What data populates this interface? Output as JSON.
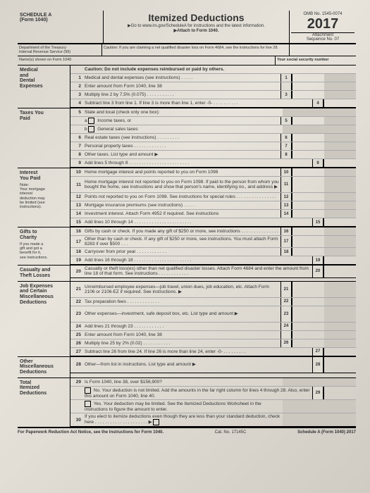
{
  "header": {
    "schedule": "SCHEDULE A",
    "form": "(Form 1040)",
    "title": "Itemized Deductions",
    "goto": "▶Go to www.irs.gov/ScheduleA for instructions and the latest information.",
    "attach": "▶Attach to Form 1040.",
    "omb": "OMB No. 1545-0074",
    "year": "2017",
    "attachment": "Attachment",
    "seq": "Sequence No. 07"
  },
  "row2": {
    "dept": "Department of the Treasury",
    "irs": "Internal Revenue Service (99)",
    "caution": "Caution: If you are claiming a net qualified disaster loss on Form 4684, see the instructions for line 28."
  },
  "names": {
    "label": "Name(s) shown on Form 1040",
    "ssn": "Your social security number"
  },
  "sections": {
    "medical": {
      "label": "Medical\nand\nDental\nExpenses",
      "caution": "Caution: Do not include expenses reimbursed or paid by others.",
      "lines": [
        {
          "n": "1",
          "t": "Medical and dental expenses (see instructions) . . . . .",
          "box": "1"
        },
        {
          "n": "2",
          "t": "Enter amount from Form 1040, line 38",
          "box": ""
        },
        {
          "n": "3",
          "t": "Multiply line 2 by 7.5% (0.075) . . . . . . . . . . .",
          "box": "3"
        },
        {
          "n": "4",
          "t": "Subtract line 3 from line 1. If line 3 is more than line 1, enter -0- . . . . . . . . . .",
          "box": "4",
          "full": true
        }
      ]
    },
    "taxes": {
      "label": "Taxes You\nPaid",
      "lines": [
        {
          "n": "5",
          "t": "State and local (check only one box):"
        },
        {
          "n": "",
          "t": "a ☐ Income taxes, or",
          "box": "5"
        },
        {
          "n": "",
          "t": "b ☐ General sales taxes"
        },
        {
          "n": "6",
          "t": "Real estate taxes (see instructions) . . . . . . . . .",
          "box": "6"
        },
        {
          "n": "7",
          "t": "Personal property taxes . . . . . . . . . . . . .",
          "box": "7"
        },
        {
          "n": "8",
          "t": "Other taxes. List type and amount ▶",
          "box": "8"
        },
        {
          "n": "9",
          "t": "Add lines 5 through 8 . . . . . . . . . . . . . . . . . . . . . . . .",
          "box": "9",
          "full": true
        }
      ]
    },
    "interest": {
      "label": "Interest\nYou Paid",
      "note": "Note:\nYour mortgage\ninterest\ndeduction may\nbe limited (see\ninstructions).",
      "lines": [
        {
          "n": "10",
          "t": "Home mortgage interest and points reported to you on Form 1098",
          "box": "10"
        },
        {
          "n": "11",
          "t": "Home mortgage interest not reported to you on Form 1098. If paid to the person from whom you bought the home, see instructions and show that person's name, identifying no., and address ▶",
          "box": "11",
          "tall": true
        },
        {
          "n": "12",
          "t": "Points not reported to you on Form 1098. See instructions for special rules . . . . . . . . . . . . . . . .",
          "box": "12"
        },
        {
          "n": "13",
          "t": "Mortgage insurance premiums (see instructions) . . . . .",
          "box": "13"
        },
        {
          "n": "14",
          "t": "Investment interest. Attach Form 4952 if required. See instructions",
          "box": "14"
        },
        {
          "n": "15",
          "t": "Add lines 10 through 14 . . . . . . . . . . . . . . . . . . . . . . .",
          "box": "15",
          "full": true
        }
      ]
    },
    "gifts": {
      "label": "Gifts to\nCharity",
      "note": "If you made a\ngift and got a\nbenefit for it,\nsee instructions.",
      "lines": [
        {
          "n": "16",
          "t": "Gifts by cash or check. If you made any gift of $250 or more, see instructions . . . . . . . . . . . . . . .",
          "box": "16"
        },
        {
          "n": "17",
          "t": "Other than by cash or check. If any gift of $250 or more, see instructions. You must attach Form 8283 if over $500 . . .",
          "box": "17"
        },
        {
          "n": "18",
          "t": "Carryover from prior year . . . . . . . . . . . .",
          "box": "18"
        },
        {
          "n": "19",
          "t": "Add lines 16 through 18 . . . . . . . . . . . . . . . . . . . . . . .",
          "box": "19",
          "full": true
        }
      ]
    },
    "casualty": {
      "label": "Casualty and\nTheft Losses",
      "lines": [
        {
          "n": "20",
          "t": "Casualty or theft loss(es) other than net qualified disaster losses. Attach Form 4684 and enter the amount from line 18 of that form. See instructions . . . . . . . . . . . .",
          "box": "20",
          "full": true
        }
      ]
    },
    "job": {
      "label": "Job Expenses\nand Certain\nMiscellaneous\nDeductions",
      "lines": [
        {
          "n": "21",
          "t": "Unreimbursed employee expenses—job travel, union dues, job education, etc. Attach Form 2106 or 2106-EZ if required. See instructions. ▶",
          "box": "21",
          "tall": true
        },
        {
          "n": "22",
          "t": "Tax preparation fees . . . . . . . . . . . . .",
          "box": "22"
        },
        {
          "n": "23",
          "t": "Other expenses—investment, safe deposit box, etc. List type and amount ▶",
          "box": "23",
          "tall": true
        },
        {
          "n": "24",
          "t": "Add lines 21 through 23 . . . . . . . . . . . .",
          "box": "24"
        },
        {
          "n": "25",
          "t": "Enter amount from Form 1040, line 38",
          "box": ""
        },
        {
          "n": "26",
          "t": "Multiply line 25 by 2% (0.02) . . . . . . . . . . .",
          "box": "26"
        },
        {
          "n": "27",
          "t": "Subtract line 26 from line 24. If line 26 is more than line 24, enter -0- . . . . . . . . .",
          "box": "27",
          "full": true
        }
      ]
    },
    "othermisc": {
      "label": "Other\nMiscellaneous\nDeductions",
      "lines": [
        {
          "n": "28",
          "t": "Other—from list in instructions. List type and amount ▶",
          "box": "28",
          "full": true,
          "tall": true
        }
      ]
    },
    "total": {
      "label": "Total\nItemized\nDeductions",
      "lines": [
        {
          "n": "29",
          "t": "Is Form 1040, line 38, over $156,900?"
        },
        {
          "n": "",
          "t": "☐ No. Your deduction is not limited. Add the amounts in the far right column for lines 4 through 28. Also, enter this amount on Form 1040, line 40.",
          "box": "29",
          "full": true
        },
        {
          "n": "",
          "t": "☐ Yes. Your deduction may be limited. See the Itemized Deductions Worksheet in the instructions to figure the amount to enter."
        },
        {
          "n": "30",
          "t": "If you elect to itemize deductions even though they are less than your standard deduction, check here . . . . . . . . . . . . . . . . . . . . . ▶ ☐"
        }
      ]
    }
  },
  "footer": {
    "left": "For Paperwork Reduction Act Notice, see the Instructions for Form 1040.",
    "mid": "Cat. No. 17145C",
    "right": "Schedule A (Form 1040) 2017"
  }
}
